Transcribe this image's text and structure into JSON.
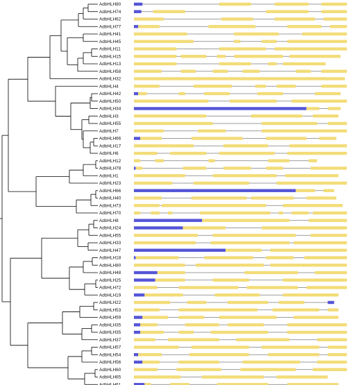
{
  "colors": {
    "utr": "#5555d8",
    "cds": "#f3dc78",
    "intron": "#8a8a8a",
    "tree": "#000000"
  },
  "track_length": 100,
  "genes": [
    {
      "name": "AdbHLH80",
      "segments": [
        [
          "utr",
          0,
          4
        ],
        [
          "cds",
          40,
          55
        ],
        [
          "cds",
          66,
          82
        ],
        [
          "cds",
          88,
          100
        ]
      ]
    },
    {
      "name": "AdbHLH74",
      "segments": [
        [
          "utr",
          0,
          3.5
        ],
        [
          "cds",
          9,
          24
        ],
        [
          "cds",
          62,
          82
        ],
        [
          "cds",
          88,
          100
        ]
      ]
    },
    {
      "name": "AdbHLH62",
      "segments": [
        [
          "cds",
          0,
          14
        ],
        [
          "cds",
          41,
          56
        ],
        [
          "cds",
          66,
          85
        ],
        [
          "cds",
          89,
          100
        ]
      ]
    },
    {
      "name": "AdbHLH77",
      "segments": [
        [
          "utr",
          0,
          2
        ],
        [
          "cds",
          2,
          12
        ],
        [
          "cds",
          35,
          57
        ],
        [
          "cds",
          72,
          88
        ],
        [
          "cds",
          92,
          100
        ]
      ]
    },
    {
      "name": "AdbHLH41",
      "segments": [
        [
          "cds",
          0,
          25
        ],
        [
          "cds",
          47,
          68
        ],
        [
          "cds",
          79,
          100
        ]
      ]
    },
    {
      "name": "AdbHLH45",
      "segments": [
        [
          "cds",
          0,
          28
        ],
        [
          "cds",
          47,
          50
        ],
        [
          "cds",
          60,
          67
        ],
        [
          "cds",
          72,
          100
        ]
      ]
    },
    {
      "name": "AdbHLH11",
      "segments": [
        [
          "cds",
          0,
          20
        ],
        [
          "cds",
          40,
          62
        ],
        [
          "cds",
          66,
          100
        ]
      ]
    },
    {
      "name": "AdbHLH15",
      "segments": [
        [
          "cds",
          0,
          20
        ],
        [
          "cds",
          22,
          34
        ],
        [
          "cds",
          39,
          43
        ],
        [
          "cds",
          47,
          70
        ],
        [
          "cds",
          73,
          97
        ]
      ]
    },
    {
      "name": "AdbHLH13",
      "segments": [
        [
          "cds",
          0,
          20
        ],
        [
          "cds",
          40,
          55
        ],
        [
          "cds",
          63,
          67
        ],
        [
          "cds",
          70,
          90
        ]
      ]
    },
    {
      "name": "AdbHLH58",
      "segments": [
        [
          "cds",
          0,
          13
        ],
        [
          "cds",
          22,
          29
        ],
        [
          "cds",
          37,
          44
        ],
        [
          "cds",
          51,
          59
        ],
        [
          "cds",
          76,
          83
        ],
        [
          "cds",
          88,
          100
        ]
      ]
    },
    {
      "name": "AdbHLH32",
      "segments": [
        [
          "cds",
          0,
          3
        ],
        [
          "cds",
          3,
          99
        ]
      ]
    },
    {
      "name": "AdbHLH4",
      "segments": [
        [
          "cds",
          0,
          12
        ],
        [
          "cds",
          28,
          46
        ],
        [
          "cds",
          57,
          62
        ],
        [
          "cds",
          67,
          76
        ],
        [
          "cds",
          88,
          100
        ]
      ]
    },
    {
      "name": "AdbHLH42",
      "segments": [
        [
          "utr",
          0,
          2
        ],
        [
          "cds",
          2,
          6
        ],
        [
          "cds",
          21,
          24
        ],
        [
          "cds",
          33,
          45
        ],
        [
          "cds",
          58,
          70
        ],
        [
          "cds",
          85,
          97
        ]
      ]
    },
    {
      "name": "AdbHLH50",
      "segments": [
        [
          "cds",
          0,
          35
        ],
        [
          "cds",
          45,
          67
        ],
        [
          "cds",
          74,
          100
        ]
      ]
    },
    {
      "name": "AdbHLH34",
      "segments": [
        [
          "utr",
          0,
          81
        ],
        [
          "cds",
          81,
          87
        ],
        [
          "cds",
          91,
          97
        ]
      ]
    },
    {
      "name": "AdbHLH3",
      "segments": [
        [
          "cds",
          0,
          34
        ],
        [
          "cds",
          55,
          79
        ],
        [
          "cds",
          84,
          96
        ]
      ]
    },
    {
      "name": "AdbHLH55",
      "segments": [
        [
          "cds",
          0,
          37
        ],
        [
          "cds",
          60,
          86
        ],
        [
          "cds",
          91,
          100
        ]
      ]
    },
    {
      "name": "AdbHLH7",
      "segments": [
        [
          "cds",
          0,
          14
        ],
        [
          "cds",
          30,
          43
        ],
        [
          "cds",
          60,
          100
        ]
      ]
    },
    {
      "name": "AdbHLH66",
      "segments": [
        [
          "utr",
          0,
          3
        ],
        [
          "cds",
          3,
          13
        ],
        [
          "cds",
          27,
          51
        ],
        [
          "cds",
          62,
          81
        ],
        [
          "cds",
          87,
          95
        ]
      ]
    },
    {
      "name": "AdbHLH17",
      "segments": [
        [
          "cds",
          0,
          28
        ],
        [
          "cds",
          42,
          63
        ],
        [
          "cds",
          73,
          100
        ]
      ]
    },
    {
      "name": "AdbHLH6",
      "segments": [
        [
          "cds",
          0,
          11
        ],
        [
          "cds",
          17,
          34
        ],
        [
          "cds",
          40,
          66
        ],
        [
          "cds",
          72,
          100
        ]
      ]
    },
    {
      "name": "AdbHLH12",
      "segments": [
        [
          "cds",
          0,
          3
        ],
        [
          "cds",
          10,
          14
        ],
        [
          "cds",
          35,
          38
        ],
        [
          "cds",
          63,
          73
        ],
        [
          "cds",
          82,
          86
        ]
      ]
    },
    {
      "name": "AdbHLH78",
      "segments": [
        [
          "utr",
          0,
          0.8
        ],
        [
          "cds",
          1,
          4
        ],
        [
          "cds",
          23,
          34
        ],
        [
          "cds",
          42,
          55
        ],
        [
          "cds",
          62,
          70
        ],
        [
          "cds",
          83,
          100
        ]
      ]
    },
    {
      "name": "AdbHLH1",
      "segments": [
        [
          "cds",
          0,
          24
        ],
        [
          "cds",
          37,
          67
        ],
        [
          "cds",
          71,
          96
        ]
      ]
    },
    {
      "name": "AdbHLH23",
      "segments": [
        [
          "cds",
          0,
          18
        ],
        [
          "cds",
          28,
          54
        ],
        [
          "cds",
          67,
          100
        ]
      ]
    },
    {
      "name": "AdbHLH66",
      "segments": [
        [
          "utr",
          0,
          76
        ],
        [
          "cds",
          76,
          85
        ],
        [
          "cds",
          89,
          94
        ]
      ]
    },
    {
      "name": "AdbHLH40",
      "segments": [
        [
          "cds",
          0,
          13
        ],
        [
          "cds",
          27,
          53
        ],
        [
          "cds",
          55,
          75
        ],
        [
          "cds",
          81,
          95
        ]
      ]
    },
    {
      "name": "AdbHLH73",
      "segments": [
        [
          "cds",
          0,
          12
        ],
        [
          "cds",
          13,
          62
        ],
        [
          "cds",
          70,
          98
        ]
      ]
    },
    {
      "name": "AdbHLH70",
      "segments": [
        [
          "cds",
          0,
          3
        ],
        [
          "cds",
          8,
          12
        ],
        [
          "cds",
          16,
          18
        ],
        [
          "cds",
          31,
          64
        ],
        [
          "cds",
          68,
          70
        ],
        [
          "cds",
          74,
          82
        ],
        [
          "cds",
          84,
          100
        ]
      ]
    },
    {
      "name": "AdbHLH8",
      "segments": [
        [
          "utr",
          0,
          32
        ],
        [
          "cds",
          32,
          73
        ],
        [
          "cds",
          82,
          100
        ]
      ]
    },
    {
      "name": "AdbHLH24",
      "segments": [
        [
          "utr",
          0,
          23
        ],
        [
          "cds",
          23,
          43
        ],
        [
          "cds",
          60,
          100
        ]
      ]
    },
    {
      "name": "AdbHLH55",
      "segments": [
        [
          "cds",
          0,
          30
        ],
        [
          "cds",
          37,
          76
        ],
        [
          "cds",
          83,
          100
        ]
      ]
    },
    {
      "name": "AdbHLH33",
      "segments": [
        [
          "cds",
          0,
          29
        ],
        [
          "cds",
          36,
          73
        ],
        [
          "cds",
          75,
          100
        ]
      ]
    },
    {
      "name": "AdbHLH47",
      "segments": [
        [
          "utr",
          0,
          43
        ],
        [
          "cds",
          43,
          60
        ],
        [
          "cds",
          64,
          100
        ]
      ]
    },
    {
      "name": "AdbHLH18",
      "segments": [
        [
          "utr",
          0,
          0.8
        ],
        [
          "cds",
          1,
          21
        ],
        [
          "cds",
          33,
          56
        ],
        [
          "cds",
          62,
          75
        ],
        [
          "cds",
          80,
          100
        ]
      ]
    },
    {
      "name": "AdbHLH80",
      "segments": [
        [
          "cds",
          0,
          24
        ],
        [
          "cds",
          29,
          61
        ],
        [
          "cds",
          64,
          100
        ]
      ]
    },
    {
      "name": "AdbHLH48",
      "segments": [
        [
          "utr",
          0,
          11
        ],
        [
          "cds",
          11,
          24
        ],
        [
          "cds",
          52,
          77
        ],
        [
          "cds",
          85,
          100
        ]
      ]
    },
    {
      "name": "AdbHLH25",
      "segments": [
        [
          "utr",
          0,
          10
        ],
        [
          "cds",
          10,
          24
        ],
        [
          "cds",
          37,
          54
        ],
        [
          "cds",
          70,
          100
        ]
      ]
    },
    {
      "name": "AdbHLH72",
      "segments": [
        [
          "cds",
          0,
          11
        ],
        [
          "cds",
          21,
          49
        ],
        [
          "cds",
          53,
          77
        ],
        [
          "cds",
          81,
          100
        ]
      ]
    },
    {
      "name": "AdbHLH19",
      "segments": [
        [
          "utr",
          0,
          5
        ],
        [
          "cds",
          5,
          23
        ],
        [
          "cds",
          38,
          59
        ],
        [
          "cds",
          70,
          96
        ]
      ]
    },
    {
      "name": "AdbHLH22",
      "segments": [
        [
          "cds",
          0,
          17
        ],
        [
          "cds",
          25,
          34
        ],
        [
          "cds",
          44,
          63
        ],
        [
          "cds",
          68,
          80
        ],
        [
          "utr",
          91,
          94
        ]
      ]
    },
    {
      "name": "AdbHLH53",
      "segments": [
        [
          "cds",
          0,
          12
        ],
        [
          "cds",
          21,
          58
        ],
        [
          "cds",
          65,
          87
        ],
        [
          "cds",
          91,
          96
        ]
      ]
    },
    {
      "name": "AdbHLH59",
      "segments": [
        [
          "utr",
          0,
          4
        ],
        [
          "cds",
          4,
          16
        ],
        [
          "cds",
          21,
          33
        ],
        [
          "cds",
          40,
          67
        ],
        [
          "cds",
          75,
          96
        ]
      ]
    },
    {
      "name": "AdbHLH35",
      "segments": [
        [
          "utr",
          0,
          3
        ],
        [
          "cds",
          3,
          11
        ],
        [
          "cds",
          24,
          40
        ],
        [
          "cds",
          44,
          61
        ],
        [
          "cds",
          72,
          100
        ]
      ]
    },
    {
      "name": "AdbHLH35",
      "segments": [
        [
          "utr",
          0,
          3
        ],
        [
          "cds",
          3,
          14
        ],
        [
          "cds",
          21,
          28
        ],
        [
          "cds",
          36,
          63
        ],
        [
          "cds",
          72,
          100
        ]
      ]
    },
    {
      "name": "AdbHLH37",
      "segments": [
        [
          "cds",
          0,
          10
        ],
        [
          "cds",
          16,
          40
        ],
        [
          "cds",
          48,
          73
        ],
        [
          "cds",
          86,
          100
        ]
      ]
    },
    {
      "name": "AdbHLH57",
      "segments": [
        [
          "cds",
          0,
          21
        ],
        [
          "cds",
          27,
          54
        ],
        [
          "cds",
          60,
          87
        ],
        [
          "cds",
          91,
          100
        ]
      ]
    },
    {
      "name": "AdbHLH54",
      "segments": [
        [
          "utr",
          0,
          2
        ],
        [
          "cds",
          2,
          13
        ],
        [
          "cds",
          26,
          54
        ],
        [
          "cds",
          63,
          87
        ],
        [
          "cds",
          91,
          100
        ]
      ]
    },
    {
      "name": "AdbHLH56",
      "segments": [
        [
          "utr",
          0,
          4
        ],
        [
          "cds",
          4,
          12
        ],
        [
          "cds",
          21,
          40
        ],
        [
          "cds",
          51,
          78
        ],
        [
          "cds",
          86,
          100
        ]
      ]
    },
    {
      "name": "AdbHLH60",
      "segments": [
        [
          "cds",
          0,
          11
        ],
        [
          "cds",
          20,
          41
        ],
        [
          "cds",
          50,
          76
        ],
        [
          "cds",
          84,
          100
        ]
      ]
    },
    {
      "name": "AdbHLH65",
      "segments": [
        [
          "cds",
          0,
          22
        ],
        [
          "cds",
          32,
          61
        ],
        [
          "cds",
          67,
          91
        ]
      ]
    },
    {
      "name": "AdbHLH61",
      "segments": [
        [
          "utr",
          0,
          5
        ],
        [
          "cds",
          5,
          8
        ],
        [
          "cds",
          17,
          26
        ],
        [
          "cds",
          39,
          63
        ],
        [
          "cds",
          72,
          96
        ]
      ]
    }
  ]
}
